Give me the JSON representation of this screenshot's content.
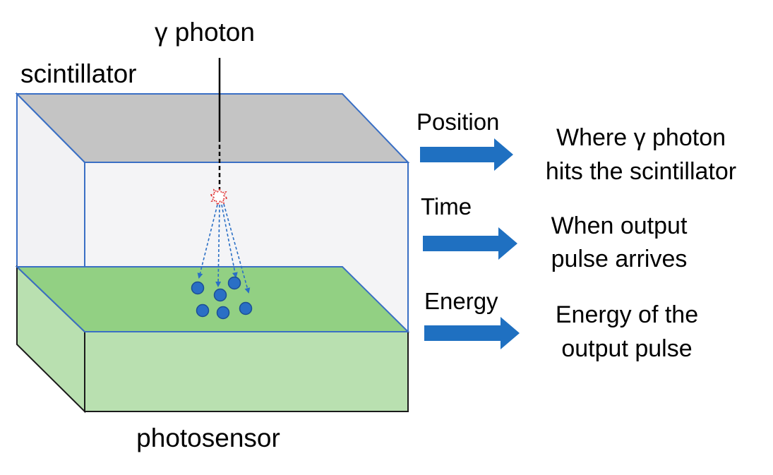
{
  "labels": {
    "photon": "γ photon",
    "scintillator": "scintillator",
    "photosensor": "photosensor"
  },
  "outputs": [
    {
      "name": "Position",
      "line1": "Where γ photon",
      "line2": "hits the scintillator"
    },
    {
      "name": "Time",
      "line1": "When output",
      "line2": "pulse arrives"
    },
    {
      "name": "Energy",
      "line1": "Energy of the",
      "line2": "output pulse"
    }
  ],
  "colors": {
    "scintillator_top": "#c4c4c4",
    "scintillator_side": "#f2f2f4",
    "box_edge": "#3a6fc4",
    "photosensor_top": "#92d083",
    "photosensor_side": "#b9e0b0",
    "arrow": "#1f70c1",
    "photon_dot": "#2a6fc5",
    "flash": "#e03030"
  }
}
